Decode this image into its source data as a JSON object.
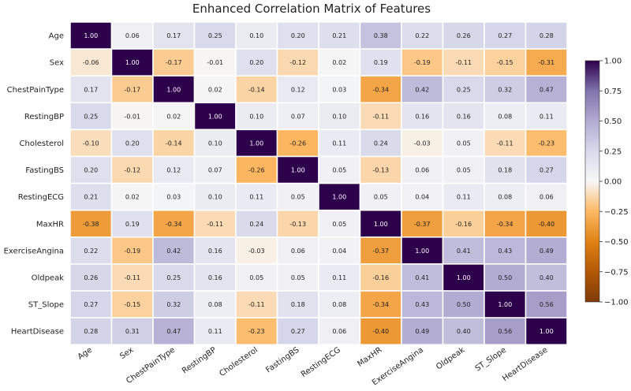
{
  "chart_data": {
    "type": "heatmap",
    "title": "Enhanced Correlation Matrix of Features",
    "rows": [
      "Age",
      "Sex",
      "ChestPainType",
      "RestingBP",
      "Cholesterol",
      "FastingBS",
      "RestingECG",
      "MaxHR",
      "ExerciseAngina",
      "Oldpeak",
      "ST_Slope",
      "HeartDisease"
    ],
    "columns": [
      "Age",
      "Sex",
      "ChestPainType",
      "RestingBP",
      "Cholesterol",
      "FastingBS",
      "RestingECG",
      "MaxHR",
      "ExerciseAngina",
      "Oldpeak",
      "ST_Slope",
      "HeartDisease"
    ],
    "values": [
      [
        1.0,
        0.06,
        0.17,
        0.25,
        0.1,
        0.2,
        0.21,
        0.38,
        0.22,
        0.26,
        0.27,
        0.28
      ],
      [
        -0.06,
        1.0,
        -0.17,
        -0.01,
        0.2,
        -0.12,
        0.02,
        0.19,
        -0.19,
        -0.11,
        -0.15,
        -0.31
      ],
      [
        0.17,
        -0.17,
        1.0,
        0.02,
        -0.14,
        0.12,
        0.03,
        -0.34,
        0.42,
        0.25,
        0.32,
        0.47
      ],
      [
        0.25,
        -0.01,
        0.02,
        1.0,
        0.1,
        0.07,
        0.1,
        -0.11,
        0.16,
        0.16,
        0.08,
        0.11
      ],
      [
        -0.1,
        0.2,
        -0.14,
        0.1,
        1.0,
        -0.26,
        0.11,
        0.24,
        -0.03,
        0.05,
        -0.11,
        -0.23
      ],
      [
        0.2,
        -0.12,
        0.12,
        0.07,
        -0.26,
        1.0,
        0.05,
        -0.13,
        0.06,
        0.05,
        0.18,
        0.27
      ],
      [
        0.21,
        0.02,
        0.03,
        0.1,
        0.11,
        0.05,
        1.0,
        0.05,
        0.04,
        0.11,
        0.08,
        0.06
      ],
      [
        -0.38,
        0.19,
        -0.34,
        -0.11,
        0.24,
        -0.13,
        0.05,
        1.0,
        -0.37,
        -0.16,
        -0.34,
        -0.4
      ],
      [
        0.22,
        -0.19,
        0.42,
        0.16,
        -0.03,
        0.06,
        0.04,
        -0.37,
        1.0,
        0.41,
        0.43,
        0.49
      ],
      [
        0.26,
        -0.11,
        0.25,
        0.16,
        0.05,
        0.05,
        0.11,
        -0.16,
        0.41,
        1.0,
        0.5,
        0.4
      ],
      [
        0.27,
        -0.15,
        0.32,
        0.08,
        -0.11,
        0.18,
        0.08,
        -0.34,
        0.43,
        0.5,
        1.0,
        0.56
      ],
      [
        0.28,
        0.31,
        0.47,
        0.11,
        -0.23,
        0.27,
        0.06,
        -0.4,
        0.49,
        0.4,
        0.56,
        1.0
      ]
    ],
    "value_format": "2 decimals",
    "colorscale": {
      "name": "PuOr",
      "min": -1.0,
      "max": 1.0,
      "ticks": [
        1.0,
        0.75,
        0.5,
        0.25,
        0.0,
        -0.25,
        -0.5,
        -0.75,
        -1.0
      ],
      "low_color": "#7f3b08",
      "mid_color": "#f7f7f7",
      "high_color": "#2d004b"
    },
    "colorbar_placement": "right",
    "grid": "white cell borders"
  }
}
